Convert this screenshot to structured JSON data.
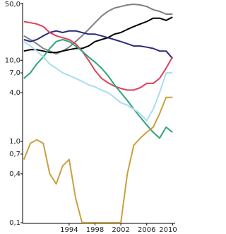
{
  "chart_data": {
    "type": "line",
    "log_y": true,
    "x": [
      1987,
      1988,
      1989,
      1990,
      1991,
      1992,
      1993,
      1994,
      1995,
      1996,
      1997,
      1998,
      1999,
      2000,
      2001,
      2002,
      2003,
      2004,
      2005,
      2006,
      2007,
      2008,
      2009,
      2010
    ],
    "xlim": [
      1986.8,
      2010.4
    ],
    "xticks": [
      1994,
      1998,
      2002,
      2006,
      2010
    ],
    "ylim": [
      0.1,
      50
    ],
    "yticks": [
      {
        "value": 0.1,
        "label": "0,1"
      },
      {
        "value": 0.4,
        "label": "0,4"
      },
      {
        "value": 0.7,
        "label": "0,7"
      },
      {
        "value": 1.0,
        "label": "1,0"
      },
      {
        "value": 4.0,
        "label": "4,0"
      },
      {
        "value": 7.0,
        "label": "7,0"
      },
      {
        "value": 10.0,
        "label": "10,0"
      },
      {
        "value": 50.0,
        "label": "50,0"
      }
    ],
    "series": [
      {
        "color": "#808080",
        "values": [
          20,
          18,
          16,
          14,
          13,
          12,
          13,
          14.5,
          17,
          20,
          24,
          29,
          35,
          40,
          44,
          46,
          48,
          49,
          48,
          46,
          42,
          40,
          37,
          37
        ]
      },
      {
        "color": "#000000",
        "values": [
          13,
          13.5,
          13.5,
          13,
          12.5,
          12.5,
          13,
          13.5,
          14,
          14,
          15,
          17,
          18,
          19,
          21,
          22,
          24,
          26,
          28,
          30,
          33,
          33,
          31,
          34
        ]
      },
      {
        "color": "#2b2b7a",
        "values": [
          18,
          17,
          18,
          20,
          22,
          23,
          22,
          23,
          23,
          22,
          21,
          21,
          20,
          19,
          18,
          17,
          16,
          15,
          15,
          14.5,
          14,
          13,
          13,
          10.5
        ]
      },
      {
        "color": "#e0405a",
        "values": [
          30,
          29,
          28,
          26,
          22,
          20,
          19,
          18,
          16,
          13,
          10,
          7.5,
          6,
          5.3,
          4.8,
          4.5,
          4.3,
          4.3,
          4.6,
          5.2,
          5.2,
          6,
          8,
          11
        ]
      },
      {
        "color": "#2fa37a",
        "values": [
          6,
          7,
          9,
          11,
          14,
          17,
          18,
          17,
          15,
          13,
          11,
          9.5,
          8,
          6.5,
          5,
          4,
          3.2,
          2.5,
          2,
          1.6,
          1.3,
          1.1,
          1.5,
          1.3
        ]
      },
      {
        "color": "#aadcf0",
        "values": [
          17,
          15,
          13,
          11,
          9,
          8,
          7,
          6.5,
          6,
          5.5,
          5,
          4.7,
          4.3,
          4,
          3.5,
          3,
          2.8,
          2.5,
          2.2,
          1.8,
          2.5,
          4,
          7,
          7
        ]
      },
      {
        "color": "#c9a040",
        "values": [
          0.6,
          0.95,
          1.05,
          0.95,
          0.4,
          0.3,
          0.5,
          0.6,
          0.2,
          0.1,
          0.1,
          0.1,
          0.1,
          0.1,
          0.1,
          0.1,
          0.4,
          0.9,
          1.1,
          1.3,
          1.5,
          2.2,
          3.5,
          3.5
        ]
      }
    ]
  }
}
